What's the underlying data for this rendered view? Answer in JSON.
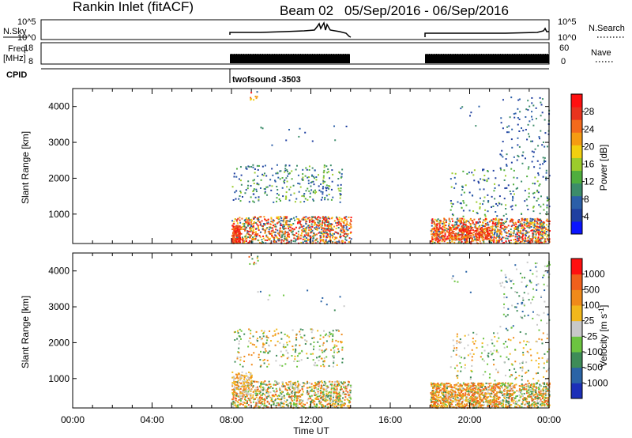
{
  "header": {
    "station": "Rankin Inlet (fitACF)",
    "beam": "Beam 02",
    "date_range": "05/Sep/2016 - 06/Sep/2016"
  },
  "status_panels": {
    "nsky_label": "N.Sky",
    "nsky_ticks": [
      "10^5",
      "10^0"
    ],
    "nsearch_label": "N.Search",
    "nsearch_ticks": [
      "10^5",
      "10^0"
    ],
    "freq_label": "Freq.",
    "freq_unit": "[MHz]",
    "freq_ticks": [
      "18",
      "8"
    ],
    "nave_label": "Nave",
    "nave_ticks": [
      "60",
      "0"
    ],
    "cpid_label": "CPID",
    "cpid_value": "twofsound -3503"
  },
  "time_axis": {
    "label": "Time UT",
    "ticks": [
      "00:00",
      "04:00",
      "08:00",
      "12:00",
      "16:00",
      "20:00",
      "00:00"
    ]
  },
  "chart_data": [
    {
      "type": "heatmap",
      "name": "power",
      "ylabel": "Slant Range [km]",
      "yticks": [
        "4000",
        "3000",
        "2000",
        "1000"
      ],
      "ylim": [
        180,
        4500
      ],
      "x_hours_range": [
        0,
        24
      ],
      "colorbar_label": "Power [dB]",
      "colorbar_ticks": [
        "28",
        "24",
        "20",
        "16",
        "12",
        "8",
        "4"
      ],
      "colorbar_colors": [
        "#0a14ff",
        "#1f3fa0",
        "#2b5fa8",
        "#3c8c6a",
        "#4fae3e",
        "#9ccc2c",
        "#f2cf0f",
        "#f59b12",
        "#f36a1c",
        "#e8331e",
        "#ff1010"
      ],
      "data_intervals_hours": [
        [
          8.0,
          14.0
        ],
        [
          18.0,
          24.0
        ]
      ]
    },
    {
      "type": "heatmap",
      "name": "velocity",
      "ylabel": "Slant Range [km]",
      "yticks": [
        "4000",
        "3000",
        "2000",
        "1000"
      ],
      "ylim": [
        180,
        4500
      ],
      "x_hours_range": [
        0,
        24
      ],
      "colorbar_label": "Velocity [m s^-1]",
      "colorbar_ticks": [
        "1000",
        "500",
        "100",
        "25",
        "-25",
        "-100",
        "-500",
        "-1000"
      ],
      "colorbar_colors": [
        "#1c2fb8",
        "#2b64a6",
        "#3e8c58",
        "#6cc440",
        "#c8c8c8",
        "#f2b81c",
        "#f08a1a",
        "#f0601c",
        "#ff1010"
      ],
      "data_intervals_hours": [
        [
          8.0,
          14.0
        ],
        [
          18.0,
          24.0
        ]
      ]
    }
  ]
}
